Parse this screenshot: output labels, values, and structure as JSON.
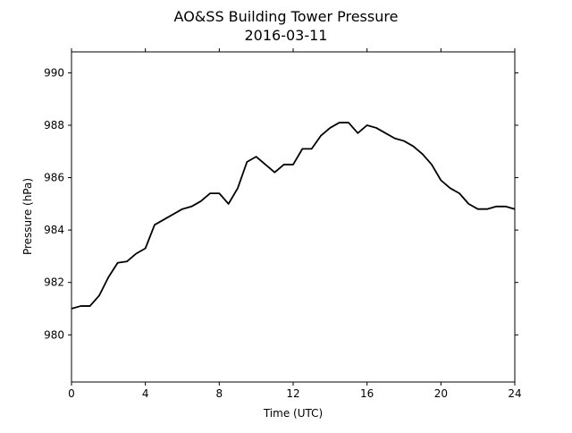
{
  "chart_data": {
    "type": "line",
    "title": "AO&SS Building Tower Pressure",
    "subtitle": "2016-03-11",
    "x_label": "Time (UTC)",
    "y_label": "Pressure (hPa)",
    "x": [
      0,
      0.5,
      1,
      1.5,
      2,
      2.5,
      3,
      3.5,
      4,
      4.5,
      5,
      5.5,
      6,
      6.5,
      7,
      7.5,
      8,
      8.5,
      9,
      9.5,
      10,
      10.5,
      11,
      11.5,
      12,
      12.5,
      13,
      13.5,
      14,
      14.5,
      15,
      15.5,
      16,
      16.5,
      17,
      17.5,
      18,
      18.5,
      19,
      19.5,
      20,
      20.5,
      21,
      21.5,
      22,
      22.5,
      23,
      23.5,
      24
    ],
    "series": [
      {
        "name": "Pressure",
        "color": "#000000",
        "values": [
          981.0,
          981.1,
          981.1,
          981.5,
          982.2,
          982.75,
          982.8,
          983.1,
          983.3,
          984.2,
          984.4,
          984.6,
          984.8,
          984.9,
          985.1,
          985.4,
          985.4,
          985.0,
          985.6,
          986.6,
          986.8,
          986.5,
          986.2,
          986.5,
          986.5,
          987.1,
          987.1,
          987.6,
          987.9,
          988.1,
          988.1,
          987.7,
          988.0,
          987.9,
          987.7,
          987.5,
          987.4,
          987.2,
          986.9,
          986.5,
          985.9,
          985.6,
          985.4,
          985.0,
          984.8,
          984.8,
          984.9,
          984.9,
          984.8
        ]
      }
    ],
    "xlim": [
      0,
      24
    ],
    "xticks": [
      0,
      4,
      8,
      12,
      16,
      20,
      24
    ],
    "ylim": [
      978.2,
      990.8
    ],
    "yticks": [
      980,
      982,
      984,
      986,
      988,
      990
    ],
    "grid": false
  }
}
